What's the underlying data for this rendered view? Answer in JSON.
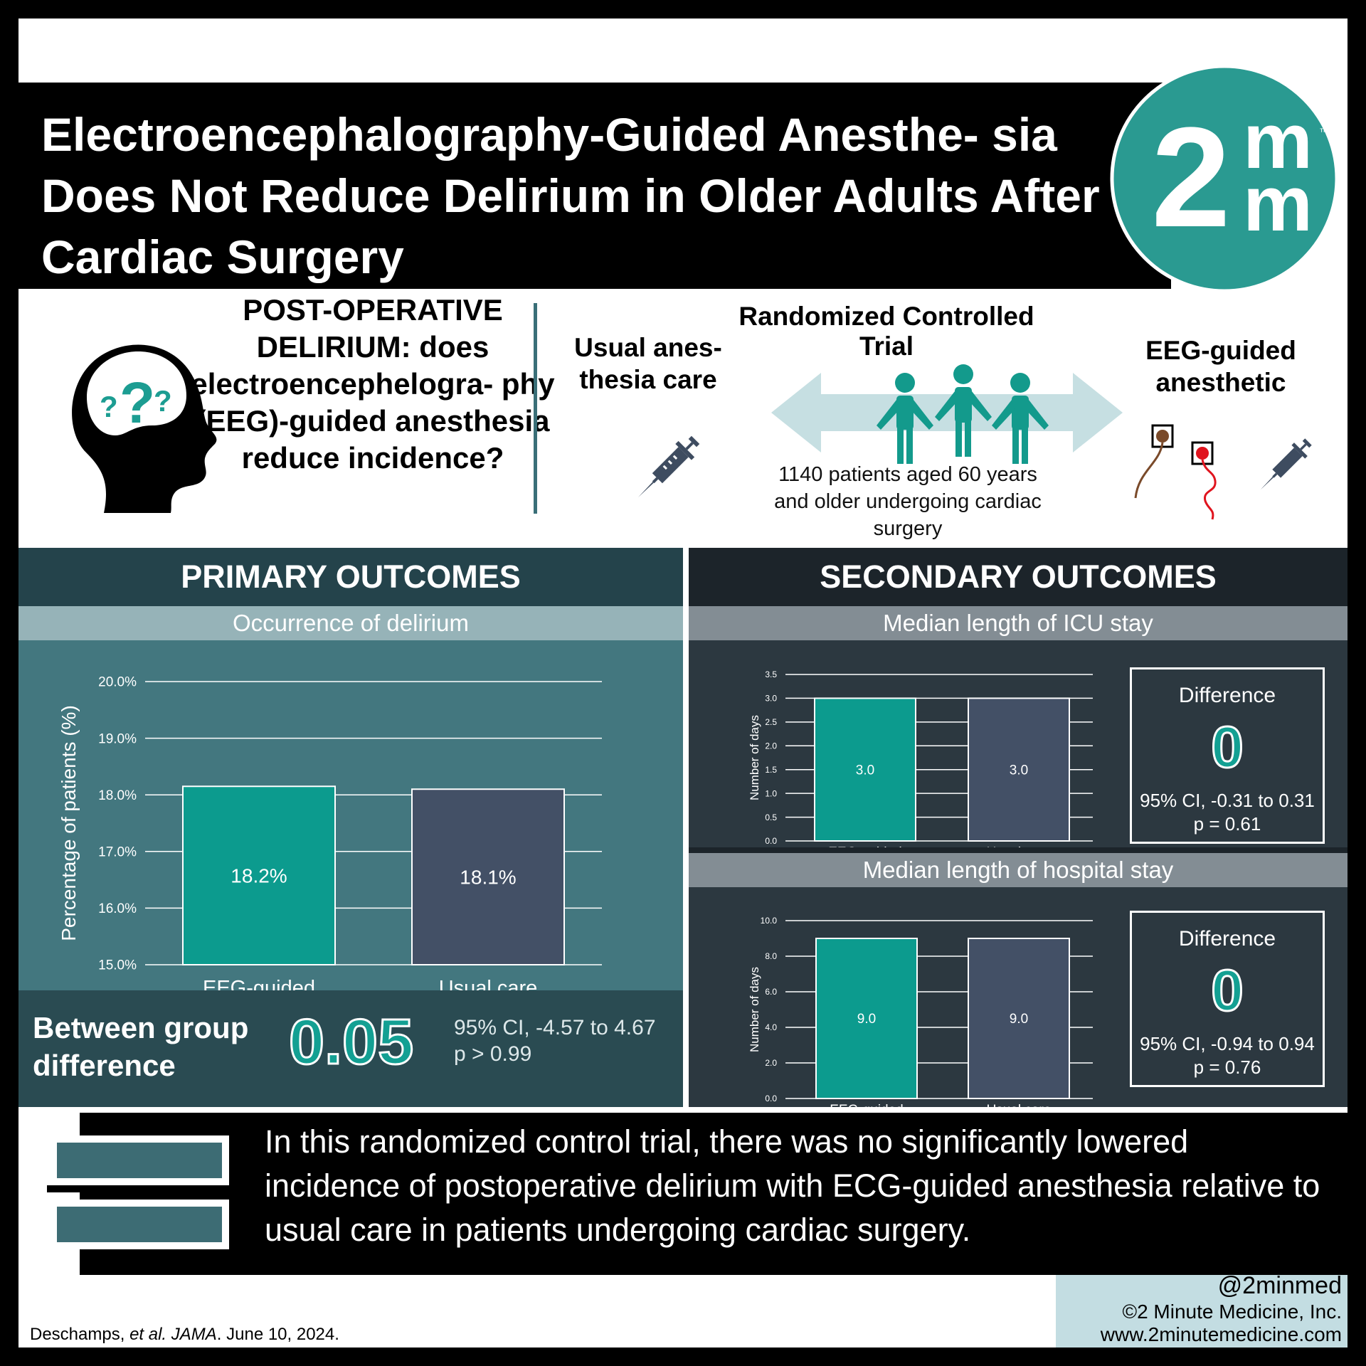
{
  "title": "Electroencephalography-Guided Anesthe- sia Does Not Reduce Delirium in Older Adults After Cardiac Surgery",
  "logo": {
    "numeral": "2",
    "m_top": "m",
    "m_bottom": "m",
    "tm": "™"
  },
  "intro": {
    "question": "POST-OPERATIVE DELIRIUM: does electroencephelogra- phy (EEG)-guided anesthesia reduce incidence?",
    "usual_label": "Usual anes- thesia care",
    "rct_label": "Randomized Controlled Trial",
    "eeg_label": "EEG-guided anesthetic",
    "rct_description": "1140 patients aged 60 years and older undergoing cardiac surgery",
    "question_marks": [
      "?",
      "?",
      "?"
    ]
  },
  "primary": {
    "header": "PRIMARY OUTCOMES",
    "subtitle": "Occurrence of delirium",
    "between_label": "Between group difference",
    "between_value": "0.05",
    "between_ci": "95% CI, -4.57 to 4.67",
    "between_p": "p > 0.99"
  },
  "secondary": {
    "header": "SECONDARY OUTCOMES",
    "icu_subtitle": "Median length of ICU stay",
    "hospital_subtitle": "Median length of hospital stay",
    "icu_diff": {
      "title": "Difference",
      "value": "0",
      "ci": "95% CI, -0.31 to 0.31",
      "p": "p = 0.61"
    },
    "hospital_diff": {
      "title": "Difference",
      "value": "0",
      "ci": "95% CI, -0.94 to 0.94",
      "p": "p = 0.76"
    }
  },
  "chart_data": [
    {
      "type": "bar",
      "title": "Occurrence of delirium",
      "ylabel": "Percentage of patients (%)",
      "categories": [
        "EEG-guided",
        "Usual care"
      ],
      "values": [
        18.15,
        18.1
      ],
      "data_labels": [
        "18.2%",
        "18.1%"
      ],
      "ylim": [
        15.0,
        20.0
      ],
      "yticks": [
        "15.0%",
        "16.0%",
        "17.0%",
        "18.0%",
        "19.0%",
        "20.0%"
      ],
      "colors": [
        "#0c9b8e",
        "#435066"
      ]
    },
    {
      "type": "bar",
      "title": "Median length of ICU stay",
      "ylabel": "Number of days",
      "categories": [
        "EEG-guided",
        "Usual care"
      ],
      "values": [
        3.0,
        3.0
      ],
      "data_labels": [
        "3.0",
        "3.0"
      ],
      "ylim": [
        0.0,
        3.5
      ],
      "yticks": [
        "0.0",
        "0.5",
        "1.0",
        "1.5",
        "2.0",
        "2.5",
        "3.0",
        "3.5"
      ],
      "colors": [
        "#0c9b8e",
        "#435066"
      ]
    },
    {
      "type": "bar",
      "title": "Median length of hospital stay",
      "ylabel": "Number of days",
      "categories": [
        "EEG-guided",
        "Usual care"
      ],
      "values": [
        9.0,
        9.0
      ],
      "data_labels": [
        "9.0",
        "9.0"
      ],
      "ylim": [
        0.0,
        10.0
      ],
      "yticks": [
        "0.0",
        "2.0",
        "4.0",
        "6.0",
        "8.0",
        "10.0"
      ],
      "colors": [
        "#0c9b8e",
        "#435066"
      ]
    }
  ],
  "conclusion": "In this randomized control trial, there was no significantly lowered incidence of postoperative delirium with ECG-guided anesthesia relative to usual care in patients undergoing cardiac surgery.",
  "footer": {
    "handle": "@2minmed",
    "copyright": "©2 Minute Medicine, Inc.",
    "website": "www.2minutemedicine.com",
    "citation": {
      "authors": "Deschamps, ",
      "etal": "et al.",
      "journal": "JAMA",
      "date": ". June 10, 2024."
    }
  },
  "colors": {
    "teal": "#0c9b8e",
    "slate": "#435066",
    "brand_teal": "#2a9a91"
  }
}
